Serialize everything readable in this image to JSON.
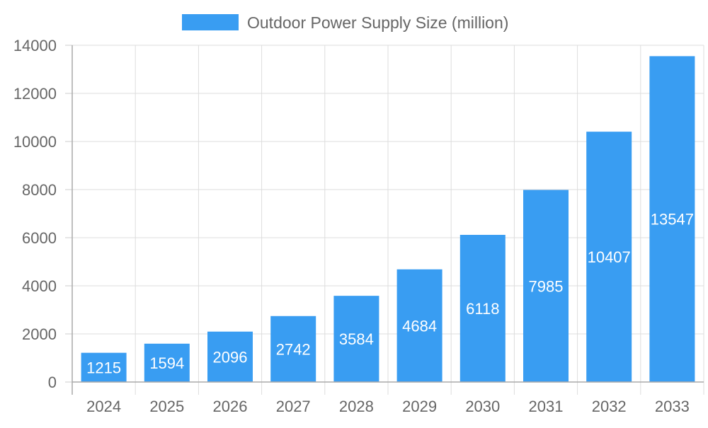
{
  "chart_data": {
    "type": "bar",
    "categories": [
      "2024",
      "2025",
      "2026",
      "2027",
      "2028",
      "2029",
      "2030",
      "2031",
      "2032",
      "2033"
    ],
    "series": [
      {
        "name": "Outdoor Power Supply Size (million)",
        "values": [
          1215,
          1594,
          2096,
          2742,
          3584,
          4684,
          6118,
          7985,
          10407,
          13547
        ],
        "color": "#399DF2"
      }
    ],
    "title": "",
    "xlabel": "",
    "ylabel": "",
    "ylim": [
      0,
      14000
    ],
    "yticks": [
      0,
      2000,
      4000,
      6000,
      8000,
      10000,
      12000,
      14000
    ],
    "grid": true,
    "legend": "top",
    "data_labels": true
  }
}
